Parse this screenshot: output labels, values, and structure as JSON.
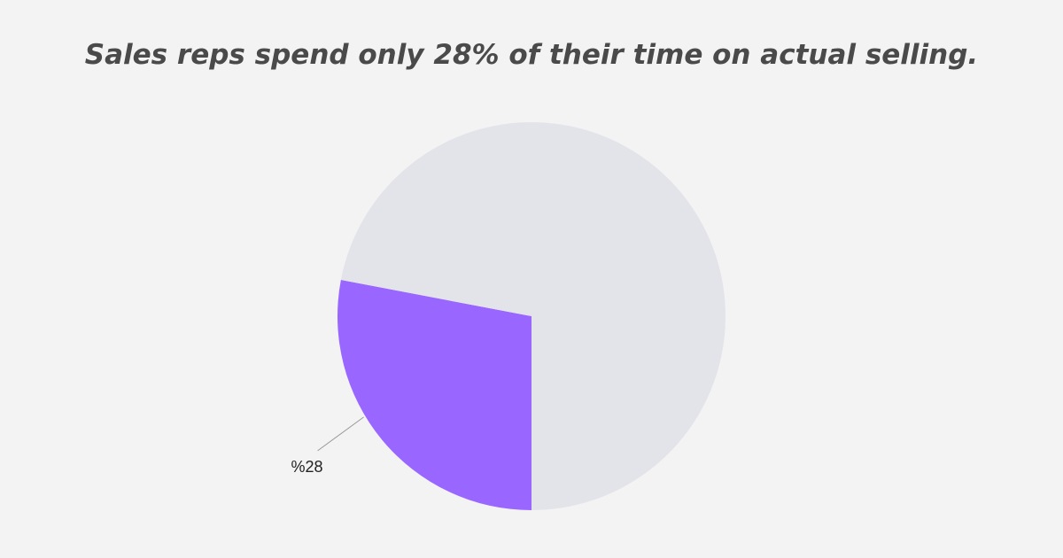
{
  "chart_data": {
    "type": "pie",
    "title": "Sales reps spend only 28% of their time on actual selling.",
    "slices": [
      {
        "value": 28,
        "label": "%28",
        "color": "#9966ff"
      },
      {
        "value": 72,
        "label": "",
        "color": "#e3e3ea"
      }
    ],
    "legend": "none"
  }
}
